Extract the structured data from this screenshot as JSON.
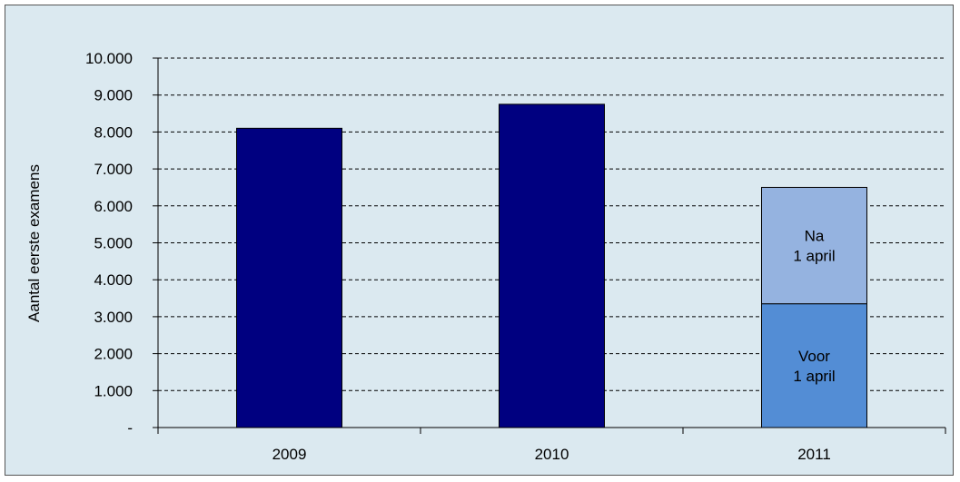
{
  "chart_data": {
    "type": "bar",
    "title": "",
    "xlabel": "",
    "ylabel": "Aantal eerste examens",
    "ylim": [
      0,
      10000
    ],
    "grid": true,
    "ytick_labels": [
      "-",
      "1.000",
      "2.000",
      "3.000",
      "4.000",
      "5.000",
      "6.000",
      "7.000",
      "8.000",
      "9.000",
      "10.000"
    ],
    "categories": [
      "2009",
      "2010",
      "2011"
    ],
    "bars": [
      {
        "category": "2009",
        "segments": [
          {
            "value": 8100,
            "label": "",
            "color": "#000080"
          }
        ]
      },
      {
        "category": "2010",
        "segments": [
          {
            "value": 8750,
            "label": "",
            "color": "#000080"
          }
        ]
      },
      {
        "category": "2011",
        "segments": [
          {
            "value": 3350,
            "label": "Voor\n1 april",
            "color": "#538dd5"
          },
          {
            "value": 3150,
            "label": "Na\n1 april",
            "color": "#95b3e0"
          }
        ]
      }
    ]
  }
}
